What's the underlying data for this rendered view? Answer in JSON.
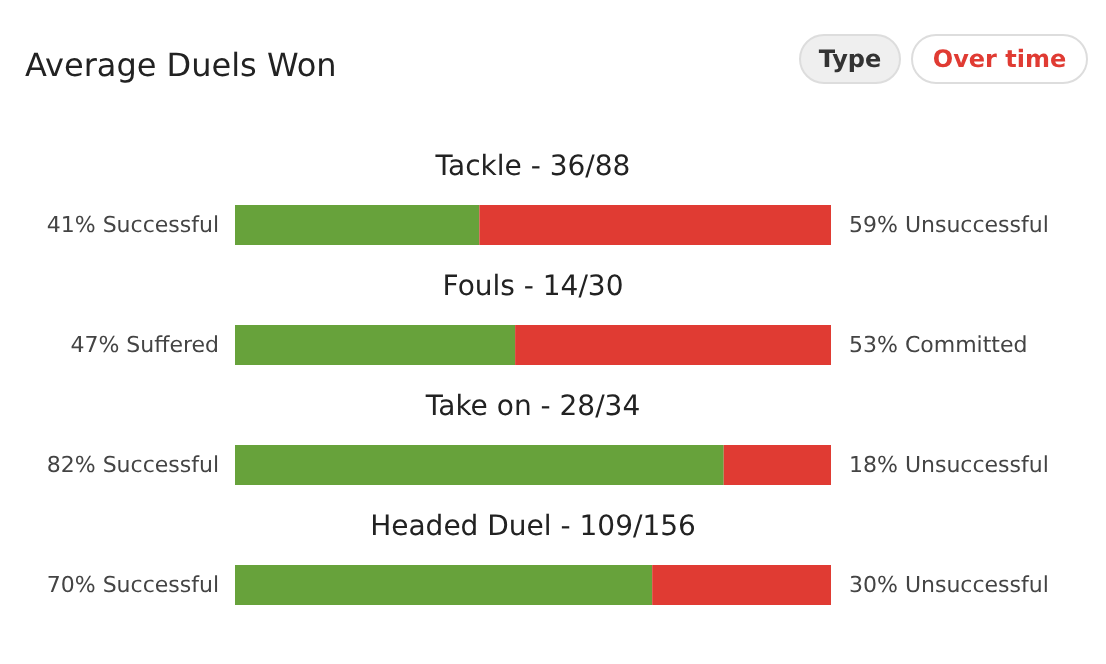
{
  "chart_data": {
    "type": "bar",
    "orientation": "horizontal",
    "stacked": true,
    "title": "Average Duels Won",
    "annotations": [
      "Type",
      "Over time"
    ],
    "categories": [
      "Tackle - 36/88",
      "Fouls - 14/30",
      "Take on - 28/34",
      "Headed Duel - 109/156"
    ],
    "series": [
      {
        "color": "#67a23b",
        "values": [
          41,
          47,
          82,
          70
        ],
        "value_labels": [
          "41% Successful",
          "47% Suffered",
          "82% Successful",
          "70% Successful"
        ]
      },
      {
        "color": "#e03b33",
        "values": [
          59,
          53,
          18,
          30
        ],
        "value_labels": [
          "59% Unsuccessful",
          "53% Committed",
          "18% Unsuccessful",
          "30% Unsuccessful"
        ]
      }
    ]
  }
}
